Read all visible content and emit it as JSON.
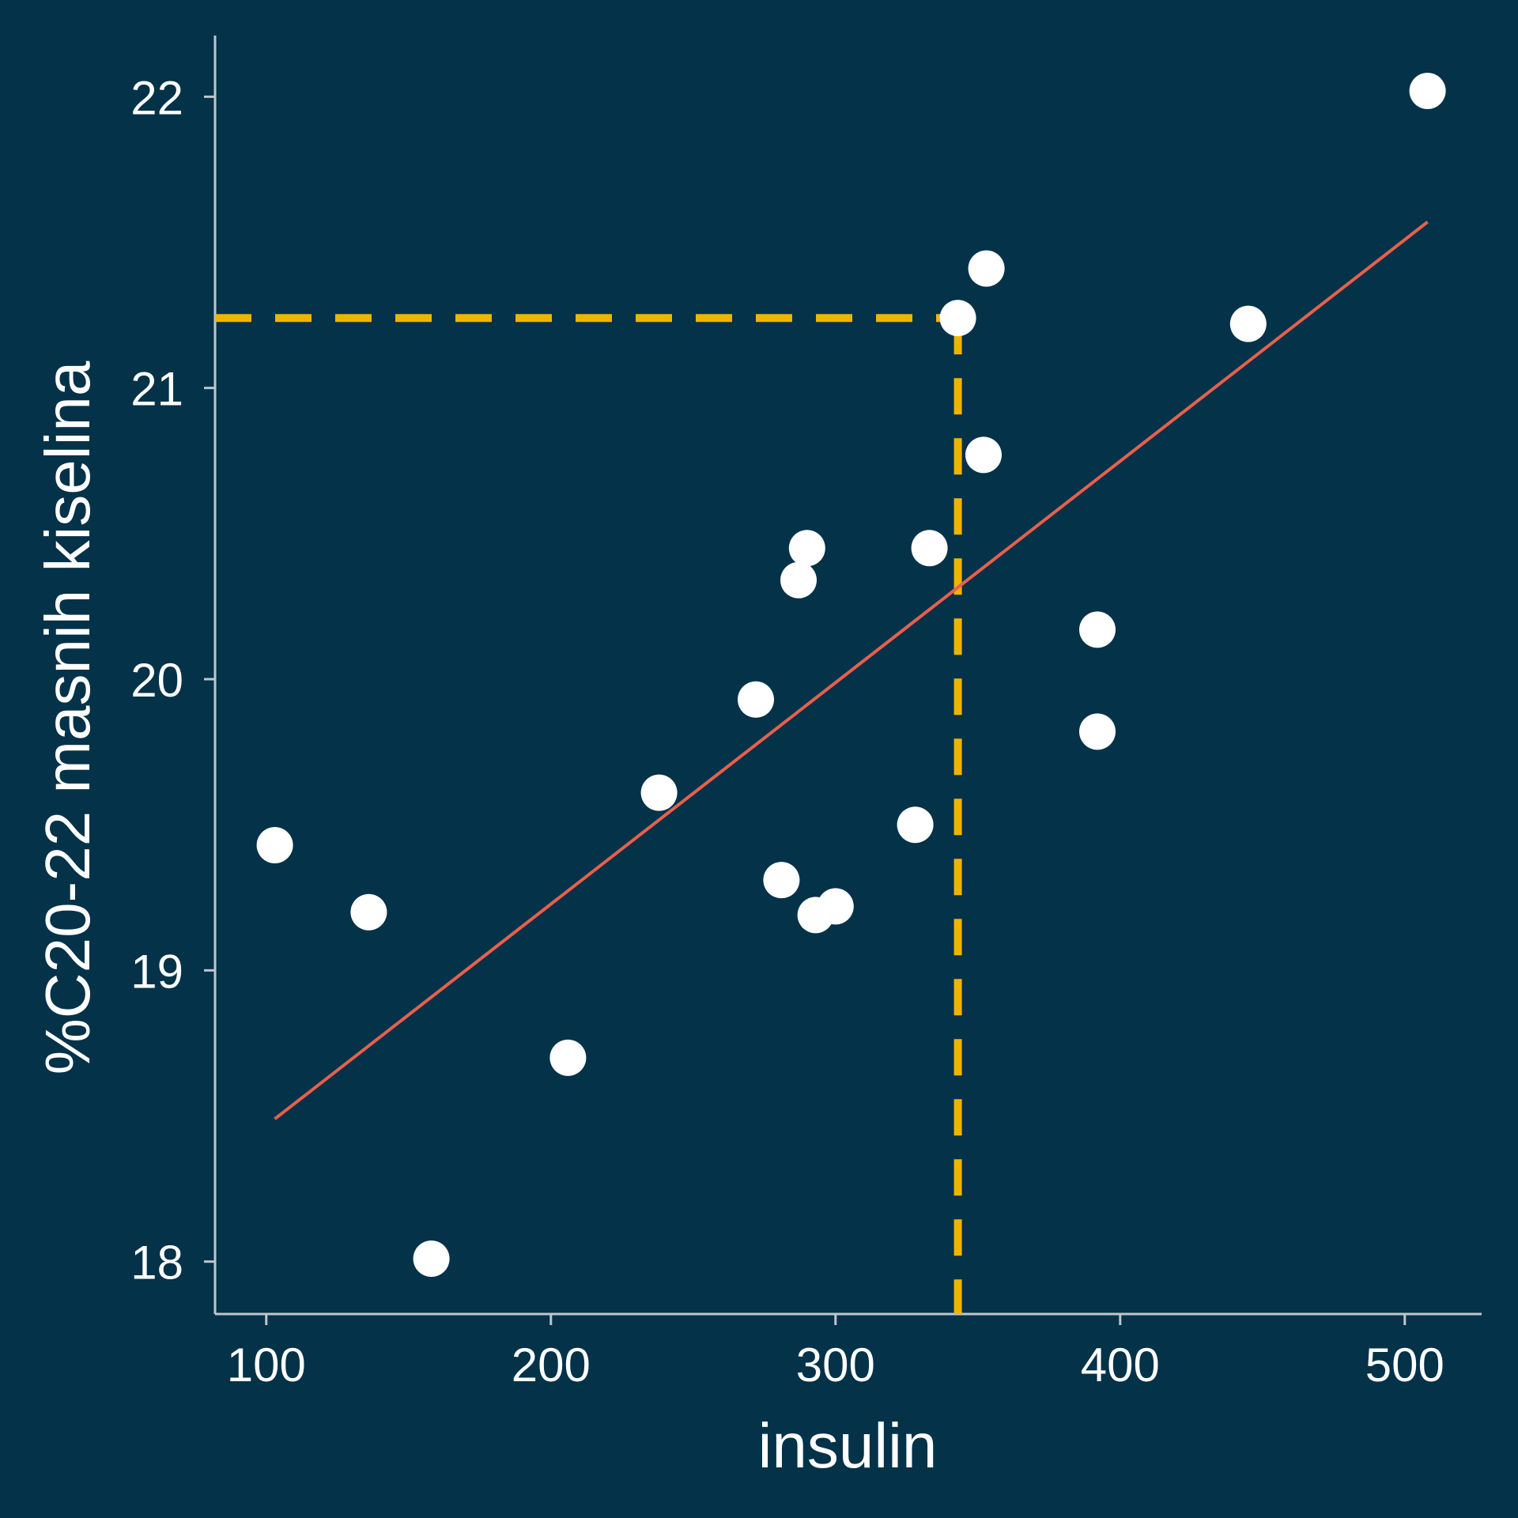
{
  "chart_data": {
    "type": "scatter",
    "xlabel": "insulin",
    "ylabel": "%C20-22 masnih kiselina",
    "xlim": [
      82,
      527
    ],
    "ylim": [
      17.82,
      22.21
    ],
    "xticks": [
      100,
      200,
      300,
      400,
      500
    ],
    "yticks": [
      18,
      19,
      20,
      21,
      22
    ],
    "grid": false,
    "colors": {
      "background": "#033249",
      "axis": "#bfc6cc",
      "points": "#ffffff",
      "fit_line": "#e8604c",
      "guide": "#f0b400"
    },
    "points": [
      {
        "x": 103,
        "y": 19.43
      },
      {
        "x": 136,
        "y": 19.2
      },
      {
        "x": 158,
        "y": 18.01
      },
      {
        "x": 206,
        "y": 18.7
      },
      {
        "x": 238,
        "y": 19.61
      },
      {
        "x": 272,
        "y": 19.93
      },
      {
        "x": 281,
        "y": 19.31
      },
      {
        "x": 287,
        "y": 20.34
      },
      {
        "x": 290,
        "y": 20.45
      },
      {
        "x": 293,
        "y": 19.19
      },
      {
        "x": 300,
        "y": 19.22
      },
      {
        "x": 328,
        "y": 19.5
      },
      {
        "x": 333,
        "y": 20.45
      },
      {
        "x": 343,
        "y": 21.24
      },
      {
        "x": 352,
        "y": 20.77
      },
      {
        "x": 353,
        "y": 21.41
      },
      {
        "x": 392,
        "y": 20.17
      },
      {
        "x": 392,
        "y": 19.82
      },
      {
        "x": 445,
        "y": 21.22
      },
      {
        "x": 508,
        "y": 22.02
      }
    ],
    "fit_line": {
      "x": [
        103,
        508
      ],
      "y": [
        18.49,
        21.57
      ]
    },
    "guide": {
      "x": 343,
      "y": 21.24
    }
  }
}
